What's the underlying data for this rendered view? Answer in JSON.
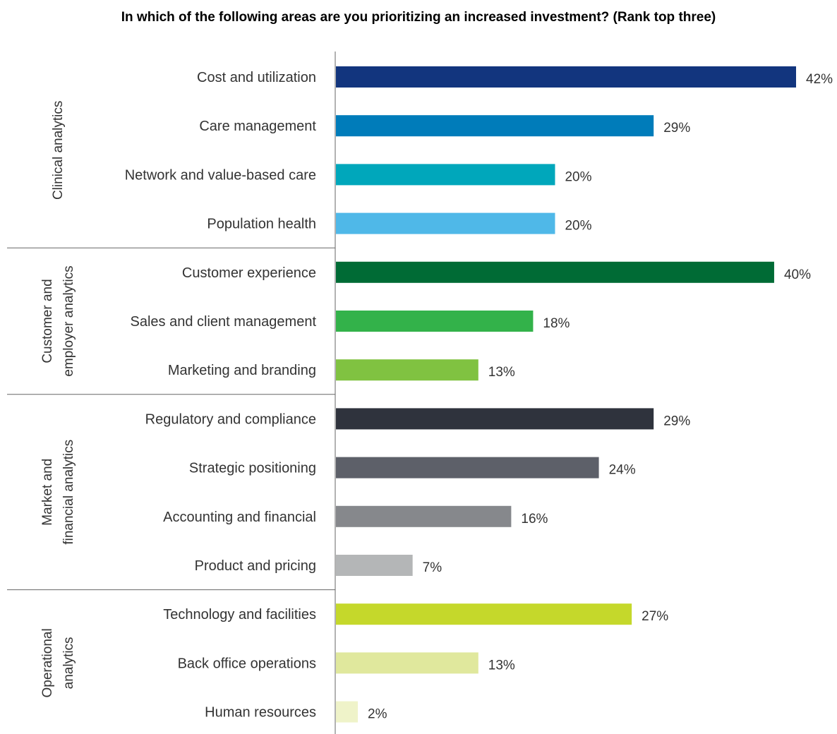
{
  "chart_data": {
    "type": "bar",
    "orientation": "horizontal",
    "title": "In which of the following areas are you prioritizing an increased investment? (Rank top three)",
    "xlim": [
      0,
      42
    ],
    "value_suffix": "%",
    "categories": [
      "Cost and utilization",
      "Care management",
      "Network and value-based care",
      "Population health",
      "Customer experience",
      "Sales and client management",
      "Marketing and branding",
      "Regulatory and compliance",
      "Strategic positioning",
      "Accounting and financial",
      "Product and pricing",
      "Technology and facilities",
      "Back office operations",
      "Human resources"
    ],
    "values": [
      42,
      29,
      20,
      20,
      40,
      18,
      13,
      29,
      24,
      16,
      7,
      27,
      13,
      2
    ],
    "value_labels": [
      "42%",
      "29%",
      "20%",
      "20%",
      "40%",
      "18%",
      "13%",
      "29%",
      "24%",
      "16%",
      "7%",
      "27%",
      "13%",
      "2%"
    ],
    "colors": [
      "#12357e",
      "#007cba",
      "#00a7bb",
      "#4fb8e8",
      "#006b35",
      "#33b24a",
      "#80c241",
      "#2f333d",
      "#5d6069",
      "#86888c",
      "#b4b6b7",
      "#c5d82b",
      "#e0e89d",
      "#eff3c9"
    ],
    "groups": [
      {
        "lines": [
          "Clinical analytics"
        ],
        "start": 0,
        "end": 3
      },
      {
        "lines": [
          "Customer and",
          "employer analytics"
        ],
        "start": 4,
        "end": 6
      },
      {
        "lines": [
          "Market and",
          "financial analytics"
        ],
        "start": 7,
        "end": 10
      },
      {
        "lines": [
          "Operational",
          "analytics"
        ],
        "start": 11,
        "end": 13
      }
    ]
  }
}
